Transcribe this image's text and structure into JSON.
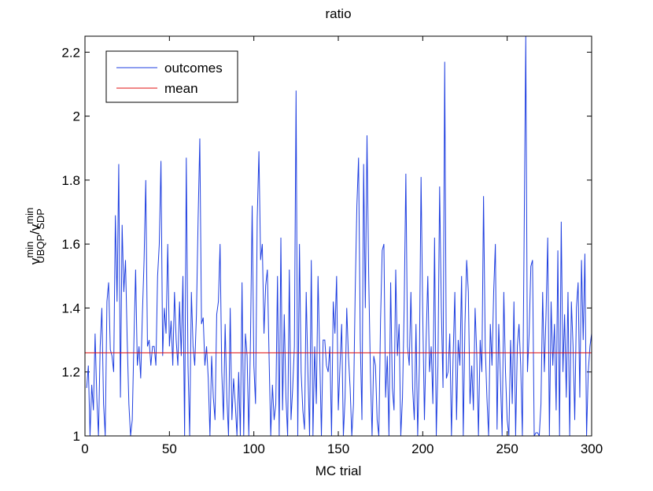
{
  "chart_data": {
    "type": "line",
    "title": "ratio",
    "xlabel": "MC trial",
    "ylabel": [
      "v",
      "min",
      "UBQP",
      "/v",
      "min",
      "SDP"
    ],
    "xlim": [
      0,
      300
    ],
    "xticks": [
      0,
      50,
      100,
      150,
      200,
      250,
      300
    ],
    "ylim": [
      1,
      2.25
    ],
    "yticks": [
      1,
      1.2,
      1.4,
      1.6,
      1.8,
      2,
      2.2
    ],
    "legend": "top-left",
    "x": [
      1,
      2,
      3,
      4,
      5,
      6,
      7,
      8,
      9,
      10,
      11,
      12,
      13,
      14,
      15,
      16,
      17,
      18,
      19,
      20,
      21,
      22,
      23,
      24,
      25,
      26,
      27,
      28,
      29,
      30,
      31,
      32,
      33,
      34,
      35,
      36,
      37,
      38,
      39,
      40,
      41,
      42,
      43,
      44,
      45,
      46,
      47,
      48,
      49,
      50,
      51,
      52,
      53,
      54,
      55,
      56,
      57,
      58,
      59,
      60,
      61,
      62,
      63,
      64,
      65,
      66,
      67,
      68,
      69,
      70,
      71,
      72,
      73,
      74,
      75,
      76,
      77,
      78,
      79,
      80,
      81,
      82,
      83,
      84,
      85,
      86,
      87,
      88,
      89,
      90,
      91,
      92,
      93,
      94,
      95,
      96,
      97,
      98,
      99,
      100,
      101,
      102,
      103,
      104,
      105,
      106,
      107,
      108,
      109,
      110,
      111,
      112,
      113,
      114,
      115,
      116,
      117,
      118,
      119,
      120,
      121,
      122,
      123,
      124,
      125,
      126,
      127,
      128,
      129,
      130,
      131,
      132,
      133,
      134,
      135,
      136,
      137,
      138,
      139,
      140,
      141,
      142,
      143,
      144,
      145,
      146,
      147,
      148,
      149,
      150,
      151,
      152,
      153,
      154,
      155,
      156,
      157,
      158,
      159,
      160,
      161,
      162,
      163,
      164,
      165,
      166,
      167,
      168,
      169,
      170,
      171,
      172,
      173,
      174,
      175,
      176,
      177,
      178,
      179,
      180,
      181,
      182,
      183,
      184,
      185,
      186,
      187,
      188,
      189,
      190,
      191,
      192,
      193,
      194,
      195,
      196,
      197,
      198,
      199,
      200,
      201,
      202,
      203,
      204,
      205,
      206,
      207,
      208,
      209,
      210,
      211,
      212,
      213,
      214,
      215,
      216,
      217,
      218,
      219,
      220,
      221,
      222,
      223,
      224,
      225,
      226,
      227,
      228,
      229,
      230,
      231,
      232,
      233,
      234,
      235,
      236,
      237,
      238,
      239,
      240,
      241,
      242,
      243,
      244,
      245,
      246,
      247,
      248,
      249,
      250,
      251,
      252,
      253,
      254,
      255,
      256,
      257,
      258,
      259,
      260,
      261,
      262,
      263,
      264,
      265,
      266,
      267,
      268,
      269,
      270,
      271,
      272,
      273,
      274,
      275,
      276,
      277,
      278,
      279,
      280,
      281,
      282,
      283,
      284,
      285,
      286,
      287,
      288,
      289,
      290,
      291,
      292,
      293,
      294,
      295,
      296,
      297,
      298,
      299,
      300
    ],
    "series": [
      {
        "name": "outcomes",
        "color": "#1f3fe0",
        "values": [
          1.15,
          1.22,
          1.0,
          1.16,
          1.08,
          1.32,
          1.12,
          1.0,
          1.28,
          1.4,
          1.1,
          1.0,
          1.42,
          1.48,
          1.27,
          1.25,
          1.2,
          1.69,
          1.42,
          1.85,
          1.12,
          1.66,
          1.45,
          1.55,
          1.3,
          1.1,
          1.0,
          1.05,
          1.3,
          1.52,
          1.22,
          1.28,
          1.18,
          1.38,
          1.55,
          1.8,
          1.28,
          1.3,
          1.22,
          1.28,
          1.28,
          1.22,
          1.5,
          1.6,
          1.86,
          1.25,
          1.4,
          1.32,
          1.6,
          1.28,
          1.36,
          1.22,
          1.45,
          1.3,
          1.22,
          1.42,
          1.25,
          1.5,
          1.0,
          1.87,
          1.22,
          1.0,
          1.45,
          1.28,
          1.22,
          1.38,
          1.68,
          1.93,
          1.35,
          1.37,
          1.22,
          1.28,
          1.18,
          1.0,
          1.25,
          1.12,
          1.05,
          1.38,
          1.42,
          1.6,
          1.2,
          1.05,
          1.35,
          1.12,
          1.0,
          1.4,
          1.05,
          1.18,
          1.1,
          1.0,
          1.2,
          1.0,
          1.48,
          1.0,
          1.32,
          1.25,
          1.0,
          1.3,
          1.72,
          1.22,
          1.1,
          1.68,
          1.89,
          1.55,
          1.6,
          1.32,
          1.47,
          1.52,
          1.25,
          1.0,
          1.16,
          1.05,
          1.1,
          1.5,
          1.0,
          1.62,
          1.08,
          1.38,
          1.12,
          1.0,
          1.52,
          1.05,
          1.15,
          1.28,
          2.08,
          1.0,
          1.6,
          1.2,
          1.08,
          1.02,
          1.45,
          1.2,
          1.0,
          1.55,
          1.0,
          1.28,
          1.1,
          1.5,
          1.25,
          1.0,
          1.3,
          1.3,
          1.22,
          1.2,
          1.28,
          1.0,
          1.42,
          1.32,
          1.5,
          1.08,
          1.22,
          1.35,
          1.0,
          1.12,
          1.4,
          1.25,
          1.15,
          1.0,
          1.1,
          1.45,
          1.72,
          1.87,
          1.3,
          1.05,
          1.85,
          1.4,
          1.94,
          1.5,
          1.2,
          1.0,
          1.25,
          1.22,
          1.05,
          1.0,
          1.36,
          1.58,
          1.6,
          1.12,
          1.25,
          1.0,
          1.48,
          1.15,
          1.08,
          1.52,
          1.25,
          1.35,
          1.0,
          1.12,
          1.4,
          1.82,
          1.28,
          1.22,
          1.45,
          1.15,
          1.05,
          1.35,
          1.0,
          1.22,
          1.81,
          1.38,
          1.05,
          1.3,
          1.5,
          1.2,
          1.28,
          1.1,
          1.62,
          1.0,
          1.22,
          1.78,
          1.4,
          1.15,
          2.17,
          1.18,
          1.2,
          1.32,
          1.0,
          1.25,
          1.45,
          1.05,
          1.3,
          1.22,
          1.5,
          1.0,
          1.35,
          1.55,
          1.45,
          1.1,
          1.22,
          1.08,
          1.4,
          1.25,
          1.0,
          1.3,
          1.2,
          1.75,
          1.28,
          1.12,
          1.0,
          1.35,
          1.22,
          1.45,
          1.6,
          1.02,
          1.35,
          1.18,
          1.0,
          1.45,
          1.2,
          1.05,
          1.0,
          1.3,
          1.1,
          1.42,
          1.0,
          1.28,
          1.35,
          1.22,
          1.0,
          1.6,
          2.25,
          1.2,
          1.32,
          1.53,
          1.55,
          1.0,
          1.01,
          1.01,
          1.0,
          1.1,
          1.45,
          1.2,
          1.38,
          1.62,
          1.0,
          1.42,
          1.22,
          1.35,
          1.08,
          1.58,
          1.0,
          1.67,
          1.2,
          1.38,
          1.12,
          1.45,
          1.0,
          1.42,
          1.28,
          1.05,
          1.4,
          1.48,
          1.12,
          1.55,
          1.3,
          1.57,
          1.0,
          1.2,
          1.28,
          1.32
        ]
      },
      {
        "name": "mean",
        "color": "#e01010",
        "value": 1.26
      }
    ]
  }
}
